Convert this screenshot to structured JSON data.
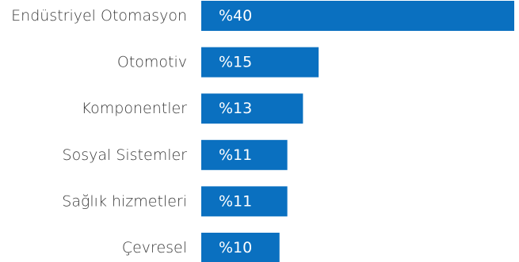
{
  "chart_data": {
    "type": "bar",
    "orientation": "horizontal",
    "categories": [
      "Endüstriyel Otomasyon",
      "Otomotiv",
      "Komponentler",
      "Sosyal Sistemler",
      "Sağlık hizmetleri",
      "Çevresel"
    ],
    "values": [
      40,
      15,
      13,
      11,
      11,
      10
    ],
    "value_labels": [
      "%40",
      "%15",
      "%13",
      "%11",
      "%11",
      "%10"
    ],
    "xlim": [
      0,
      40
    ],
    "grid": false,
    "legend": "none"
  },
  "colors": {
    "bar": "#0a70c0",
    "category_text": "#3a3a3a",
    "value_text": "#ffffff"
  }
}
